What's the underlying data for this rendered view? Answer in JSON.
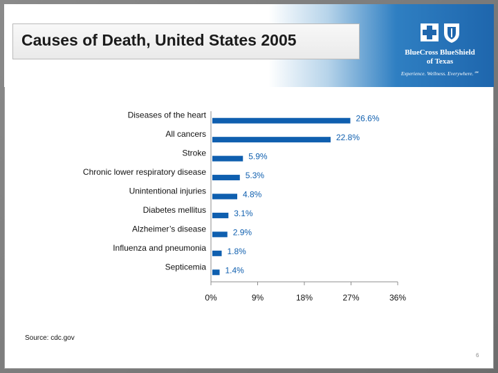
{
  "slide": {
    "title": "Causes of Death, United States 2005",
    "source": "Source: cdc.gov",
    "page_number": "6"
  },
  "logo": {
    "name": "BlueCross BlueShield",
    "subname": "of Texas",
    "tagline": "Experience. Wellness. Everywhere.℠"
  },
  "colors": {
    "bar": "#0f5faf",
    "label": "#0f5faf",
    "axis": "#8c8c8c"
  },
  "chart_data": {
    "type": "bar",
    "orientation": "horizontal",
    "title": "Causes of Death, United States 2005",
    "categories": [
      "Diseases of the heart",
      "All cancers",
      "Stroke",
      "Chronic lower respiratory disease",
      "Unintentional injuries",
      "Diabetes mellitus",
      "Alzheimer’s disease",
      "Influenza and pneumonia",
      "Septicemia"
    ],
    "values": [
      26.6,
      22.8,
      5.9,
      5.3,
      4.8,
      3.1,
      2.9,
      1.8,
      1.4
    ],
    "value_labels": [
      "26.6%",
      "22.8%",
      "5.9%",
      "5.3%",
      "4.8%",
      "3.1%",
      "2.9%",
      "1.8%",
      "1.4%"
    ],
    "xlim": [
      0,
      36
    ],
    "xticks": [
      0,
      9,
      18,
      27,
      36
    ],
    "xtick_labels": [
      "0%",
      "9%",
      "18%",
      "27%",
      "36%"
    ],
    "xlabel": "",
    "ylabel": "",
    "grid": false,
    "legend": "none"
  }
}
